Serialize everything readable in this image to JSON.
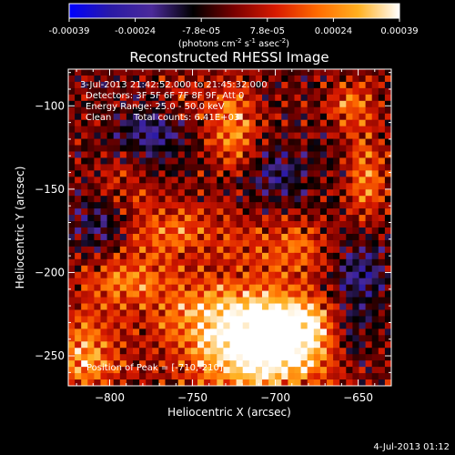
{
  "chart_data": {
    "type": "heatmap",
    "title": "Reconstructed RHESSI Image",
    "xlabel": "Heliocentric X (arcsec)",
    "ylabel": "Heliocentric Y (arcsec)",
    "xlim": [
      -825,
      -630
    ],
    "ylim": [
      -268,
      -78
    ],
    "x_ticks": [
      -800,
      -750,
      -700,
      -650
    ],
    "y_ticks": [
      -250,
      -200,
      -150,
      -100
    ],
    "grid": false,
    "colorbar": {
      "range": [
        -0.00039,
        0.00039
      ],
      "ticks": [
        "-0.00039",
        "-0.00024",
        "-7.8e-05",
        "7.8e-05",
        "0.00024",
        "0.00039"
      ],
      "unit_label": "(photons cm",
      "unit_exp1": "-2",
      "unit_mid": " s",
      "unit_exp2": "-1",
      "unit_mid2": " asec",
      "unit_exp3": "-2",
      "unit_end": ")",
      "colormap": [
        "#0000ff",
        "#2a1aa6",
        "#4b2a9a",
        "#000000",
        "#7a0000",
        "#d81a00",
        "#ff6a00",
        "#ffb020",
        "#ffffff"
      ]
    },
    "annotations": {
      "time_range": "3-Jul-2013 21:42:52.000 to 21:45:32.000",
      "detectors": "Detectors: 3F 5F 6F 7F 8F 9F, Att 0",
      "energy": "Energy Range: 25.0 - 50.0 keV",
      "clean": "Clean",
      "counts": "Total counts: 6.41E+03",
      "peak": "Position of Peak = [-710,-210]"
    },
    "peak_position": [
      -710,
      -210
    ],
    "grid_size": [
      50,
      50
    ],
    "intensity_blobs": [
      {
        "x": -710,
        "y": -250,
        "amp": 1.0,
        "sx": 30,
        "sy": 20
      },
      {
        "x": -690,
        "y": -232,
        "amp": 0.85,
        "sx": 20,
        "sy": 14
      },
      {
        "x": -735,
        "y": -225,
        "amp": 0.6,
        "sx": 24,
        "sy": 16
      },
      {
        "x": -815,
        "y": -250,
        "amp": 0.75,
        "sx": 14,
        "sy": 16
      },
      {
        "x": -790,
        "y": -205,
        "amp": 0.55,
        "sx": 20,
        "sy": 14
      },
      {
        "x": -725,
        "y": -115,
        "amp": 0.7,
        "sx": 10,
        "sy": 18
      },
      {
        "x": -655,
        "y": -100,
        "amp": 0.55,
        "sx": 10,
        "sy": 10
      },
      {
        "x": -645,
        "y": -145,
        "amp": 0.6,
        "sx": 8,
        "sy": 20
      },
      {
        "x": -760,
        "y": -175,
        "amp": 0.5,
        "sx": 22,
        "sy": 12
      },
      {
        "x": -690,
        "y": -185,
        "amp": 0.5,
        "sx": 22,
        "sy": 12
      },
      {
        "x": -795,
        "y": -150,
        "amp": 0.35,
        "sx": 14,
        "sy": 12
      },
      {
        "x": -760,
        "y": -100,
        "amp": 0.25,
        "sx": 16,
        "sy": 12
      }
    ],
    "negative_blobs": [
      {
        "x": -775,
        "y": -115,
        "amp": -0.55,
        "sx": 14,
        "sy": 12
      },
      {
        "x": -805,
        "y": -170,
        "amp": -0.45,
        "sx": 14,
        "sy": 14
      },
      {
        "x": -650,
        "y": -200,
        "amp": -0.5,
        "sx": 12,
        "sy": 20
      },
      {
        "x": -655,
        "y": -240,
        "amp": -0.35,
        "sx": 10,
        "sy": 12
      },
      {
        "x": -700,
        "y": -140,
        "amp": -0.35,
        "sx": 18,
        "sy": 12
      }
    ],
    "timestamp": "4-Jul-2013 01:12"
  }
}
